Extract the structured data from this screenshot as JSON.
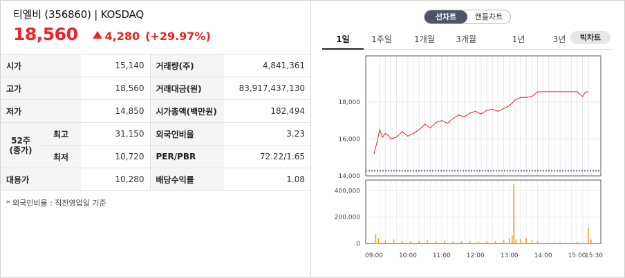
{
  "header": {
    "name": "티엘비 (356860) | KOSDAQ",
    "price": "18,560",
    "change": "4,280",
    "change_rate": "(+29.97%)"
  },
  "table": {
    "open_label": "시가",
    "open_value": "15,140",
    "volume_label": "거래량(주)",
    "volume_value": "4,841,361",
    "high_label": "고가",
    "high_value": "18,560",
    "amount_label": "거래대금(원)",
    "amount_value": "83,917,437,130",
    "low_label": "저가",
    "low_value": "14,850",
    "mktcap_label": "시가총액(백만원)",
    "mktcap_value": "182,494",
    "wk52_label": "52주\n(종가)",
    "wk52_high_label": "최고",
    "wk52_high_value": "31,150",
    "foreign_label": "외국인비율",
    "foreign_value": "3.23",
    "wk52_low_label": "최저",
    "wk52_low_value": "10,720",
    "perpbr_label": "PER/PBR",
    "perpbr_value": "72.22/1.65",
    "sub_label": "대용가",
    "sub_value": "10,280",
    "div_label": "배당수익률",
    "div_value": "1.08"
  },
  "footnote": "* 외국인비율 : 직전영업일 기준",
  "chart_type_toggle": {
    "line": "선차트",
    "candle": "캔들차트"
  },
  "periods": [
    "1일",
    "1주일",
    "1개월",
    "3개월",
    "1년",
    "3년"
  ],
  "bigchart_label": "빅차트",
  "colors": {
    "up": "#e22222",
    "volume": "#f0a020",
    "prev_close_line": "#5a7090"
  },
  "chart_data": [
    {
      "type": "line",
      "title": "",
      "x_ticks": [
        "09:00",
        "10:00",
        "11:00",
        "12:00",
        "13:00",
        "14:00",
        "15:00",
        "15:30"
      ],
      "y_ticks": [
        "14,000",
        "16,000",
        "18,000"
      ],
      "ylim": [
        14000,
        20500
      ],
      "prev_close": 14280,
      "series": [
        {
          "x": [
            "09:00",
            "09:05",
            "09:10",
            "09:15",
            "09:20",
            "09:25",
            "09:30",
            "09:40",
            "09:50",
            "10:00",
            "10:10",
            "10:20",
            "10:30",
            "10:40",
            "10:50",
            "11:00",
            "11:10",
            "11:20",
            "11:30",
            "11:40",
            "11:50",
            "12:00",
            "12:10",
            "12:20",
            "12:30",
            "12:40",
            "12:50",
            "13:00",
            "13:10",
            "13:20",
            "13:30",
            "13:40",
            "13:50",
            "14:00",
            "14:30",
            "15:00",
            "15:10",
            "15:15",
            "15:20"
          ],
          "values": [
            15200,
            15800,
            16500,
            16100,
            16300,
            16200,
            16000,
            16100,
            16400,
            16150,
            16300,
            16500,
            16800,
            16600,
            16900,
            17000,
            16850,
            17100,
            17300,
            17200,
            17400,
            17500,
            17350,
            17550,
            17600,
            17500,
            17650,
            17800,
            18100,
            18250,
            18250,
            18300,
            18550,
            18560,
            18560,
            18560,
            18300,
            18540,
            18560
          ]
        }
      ]
    },
    {
      "type": "bar",
      "title": "",
      "y_ticks": [
        "0",
        "200,000",
        "400,000"
      ],
      "ylim": [
        0,
        480000
      ],
      "x_ticks": [
        "09:00",
        "10:00",
        "11:00",
        "12:00",
        "13:00",
        "14:00",
        "15:00",
        "15:30"
      ],
      "series": [
        {
          "x": [
            "09:03",
            "09:08",
            "09:20",
            "09:35",
            "09:50",
            "10:05",
            "10:20",
            "10:35",
            "10:50",
            "11:05",
            "11:20",
            "11:35",
            "11:50",
            "12:05",
            "12:20",
            "12:35",
            "12:50",
            "13:00",
            "13:05",
            "13:08",
            "13:12",
            "13:20",
            "13:30",
            "13:40",
            "13:50",
            "14:30",
            "15:00",
            "15:20",
            "15:25"
          ],
          "values": [
            70000,
            40000,
            25000,
            30000,
            20000,
            15000,
            20000,
            25000,
            15000,
            18000,
            12000,
            15000,
            20000,
            12000,
            18000,
            15000,
            25000,
            40000,
            60000,
            450000,
            30000,
            35000,
            40000,
            25000,
            15000,
            8000,
            10000,
            120000,
            30000
          ]
        }
      ]
    }
  ]
}
